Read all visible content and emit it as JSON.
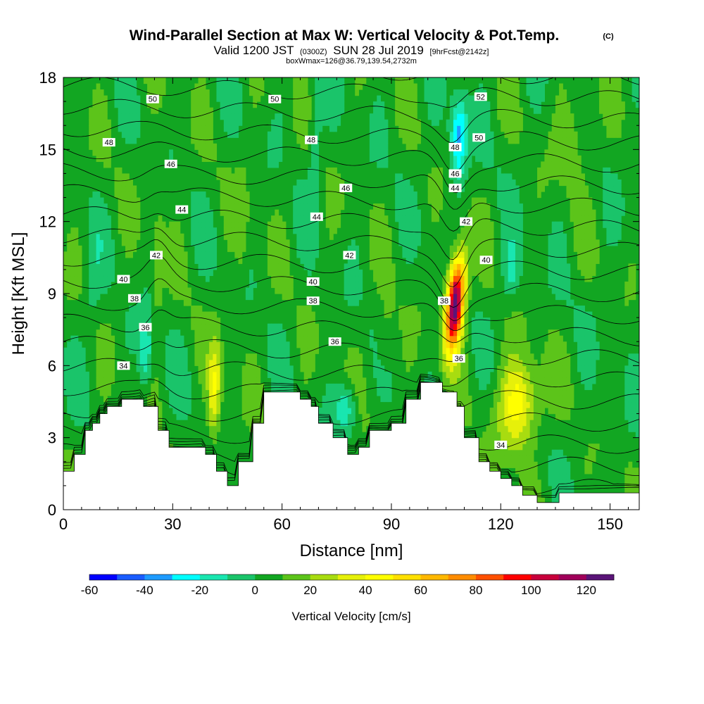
{
  "header": {
    "title": "Wind-Parallel Section at Max W: Vertical Velocity & Pot.Temp.",
    "copyright": "(C)",
    "valid_prefix": "Valid 1200 JST",
    "valid_utc": "(0300Z)",
    "valid_date": "SUN 28 Jul 2019",
    "forecast": "[9hrFcst@2142z]",
    "box_info": "boxWmax=126@36.79,139.54,2732m"
  },
  "chart_data": {
    "type": "heatmap",
    "xlabel": "Distance [nm]",
    "ylabel": "Height [Kft MSL]",
    "xlim": [
      0,
      158
    ],
    "ylim": [
      0,
      18
    ],
    "xticks": [
      0,
      30,
      60,
      90,
      120,
      150
    ],
    "yticks": [
      0,
      3,
      6,
      9,
      12,
      15,
      18
    ],
    "colorbar": {
      "label": "Vertical Velocity [cm/s]",
      "levels": [
        -60,
        -50,
        -40,
        -30,
        -20,
        -10,
        0,
        10,
        20,
        30,
        40,
        50,
        60,
        70,
        80,
        90,
        100,
        110,
        120,
        130
      ],
      "ticks": [
        -60,
        -40,
        -20,
        0,
        20,
        40,
        60,
        80,
        100,
        120
      ],
      "colors": [
        "#0000ff",
        "#1a5cff",
        "#1e9bff",
        "#00ffff",
        "#19e6b0",
        "#1ac46a",
        "#12a622",
        "#5cc41a",
        "#a8dc10",
        "#e6f00a",
        "#ffff00",
        "#ffe000",
        "#ffb800",
        "#ff8c00",
        "#ff5000",
        "#ff0000",
        "#c8003c",
        "#a0005a",
        "#5a1478"
      ]
    },
    "wind_max_cm_s": 126,
    "terrain_kft": [
      [
        0,
        1.6
      ],
      [
        3,
        2.3
      ],
      [
        6,
        3.3
      ],
      [
        8,
        3.6
      ],
      [
        10,
        4.0
      ],
      [
        12,
        4.3
      ],
      [
        16,
        4.6
      ],
      [
        22,
        4.3
      ],
      [
        26,
        3.3
      ],
      [
        29,
        2.6
      ],
      [
        36,
        2.6
      ],
      [
        39,
        2.3
      ],
      [
        42,
        1.6
      ],
      [
        45,
        1.0
      ],
      [
        48,
        2.0
      ],
      [
        52,
        3.6
      ],
      [
        55,
        4.9
      ],
      [
        62,
        4.9
      ],
      [
        65,
        4.6
      ],
      [
        68,
        4.3
      ],
      [
        70,
        3.6
      ],
      [
        74,
        3.0
      ],
      [
        78,
        2.3
      ],
      [
        81,
        2.6
      ],
      [
        84,
        3.3
      ],
      [
        90,
        3.6
      ],
      [
        94,
        4.6
      ],
      [
        98,
        5.3
      ],
      [
        104,
        4.9
      ],
      [
        108,
        4.3
      ],
      [
        110,
        3.0
      ],
      [
        114,
        2.0
      ],
      [
        117,
        1.6
      ],
      [
        120,
        1.3
      ],
      [
        123,
        1.0
      ],
      [
        126,
        0.6
      ],
      [
        130,
        0.3
      ],
      [
        136,
        0.7
      ],
      [
        158,
        0.7
      ]
    ],
    "updrafts": [
      {
        "x": 107.5,
        "y": 8.6,
        "peak": 126
      },
      {
        "x": 125.0,
        "y": 4.4,
        "peak": 42
      },
      {
        "x": 41.5,
        "y": 5.0,
        "peak": 35
      },
      {
        "x": 26.0,
        "y": 10.5,
        "peak": 14
      },
      {
        "x": 49.0,
        "y": 12.0,
        "peak": 10
      },
      {
        "x": 88.0,
        "y": 7.0,
        "peak": 12
      },
      {
        "x": 140.0,
        "y": 15.5,
        "peak": 12
      }
    ],
    "downdrafts": [
      {
        "x": 108.5,
        "y": 15.5,
        "peak": -42
      },
      {
        "x": 22.5,
        "y": 6.5,
        "peak": -25
      },
      {
        "x": 77.5,
        "y": 4.2,
        "peak": -26
      },
      {
        "x": 123.0,
        "y": 10.0,
        "peak": -18
      },
      {
        "x": 69.0,
        "y": 15.5,
        "peak": -14
      },
      {
        "x": 8.0,
        "y": 9.0,
        "peak": -10
      }
    ],
    "theta_labels": [
      {
        "text": "50",
        "x": 24.5,
        "y": 17.1
      },
      {
        "text": "50",
        "x": 58.0,
        "y": 17.1
      },
      {
        "text": "52",
        "x": 114.5,
        "y": 17.2
      },
      {
        "text": "48",
        "x": 12.5,
        "y": 15.3
      },
      {
        "text": "48",
        "x": 68.0,
        "y": 15.4
      },
      {
        "text": "50",
        "x": 114.0,
        "y": 15.5
      },
      {
        "text": "48",
        "x": 107.5,
        "y": 15.1
      },
      {
        "text": "46",
        "x": 29.5,
        "y": 14.4
      },
      {
        "text": "46",
        "x": 107.5,
        "y": 14.0
      },
      {
        "text": "46",
        "x": 77.5,
        "y": 13.4
      },
      {
        "text": "44",
        "x": 107.5,
        "y": 13.4
      },
      {
        "text": "44",
        "x": 32.5,
        "y": 12.5
      },
      {
        "text": "44",
        "x": 69.5,
        "y": 12.2
      },
      {
        "text": "42",
        "x": 110.5,
        "y": 12.0
      },
      {
        "text": "42",
        "x": 25.5,
        "y": 10.6
      },
      {
        "text": "42",
        "x": 78.5,
        "y": 10.6
      },
      {
        "text": "40",
        "x": 116.0,
        "y": 10.4
      },
      {
        "text": "40",
        "x": 16.5,
        "y": 9.6
      },
      {
        "text": "40",
        "x": 68.5,
        "y": 9.5
      },
      {
        "text": "38",
        "x": 19.5,
        "y": 8.8
      },
      {
        "text": "38",
        "x": 68.5,
        "y": 8.7
      },
      {
        "text": "38",
        "x": 104.5,
        "y": 8.7
      },
      {
        "text": "36",
        "x": 22.5,
        "y": 7.6
      },
      {
        "text": "36",
        "x": 74.5,
        "y": 7.0
      },
      {
        "text": "36",
        "x": 108.5,
        "y": 6.3
      },
      {
        "text": "34",
        "x": 16.5,
        "y": 6.0
      },
      {
        "text": "34",
        "x": 120.0,
        "y": 2.7
      }
    ]
  }
}
